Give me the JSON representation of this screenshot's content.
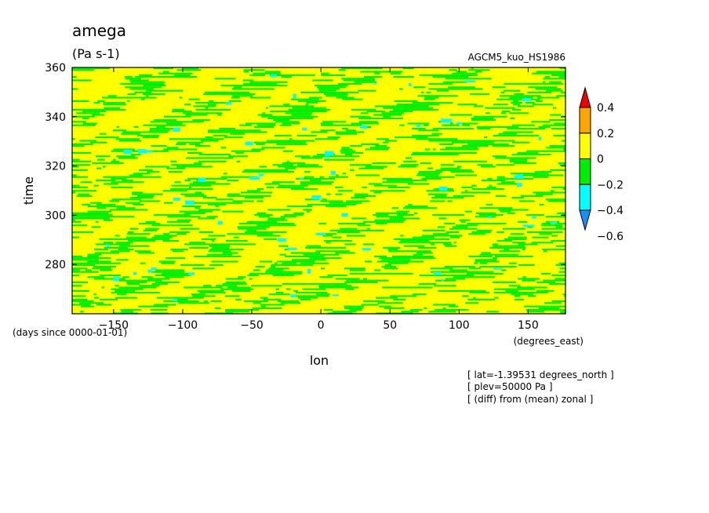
{
  "title": "amega",
  "units": "(Pa s-1)",
  "model_label": "AGCM5_kuo_HS1986",
  "xlabel": "lon",
  "ylabel": "time",
  "x_units": "(degrees_east)",
  "y_units": "(days since 0000-01-01)",
  "annotations": [
    "[ lat=-1.39531 degrees_north ]",
    "[ plev=50000 Pa ]",
    "[ (diff) from (mean) zonal ]"
  ],
  "colors": {
    "red": "#ee0000",
    "orange": "#ffa500",
    "yellow": "#ffff00",
    "green": "#00ee00",
    "cyan": "#00ffff",
    "blue": "#1c8cff"
  },
  "chart_data": {
    "type": "heatmap",
    "title": "amega",
    "xlabel": "lon",
    "ylabel": "time",
    "xlim": [
      -180,
      177
    ],
    "ylim": [
      260,
      360
    ],
    "x_ticks": [
      -150,
      -100,
      -50,
      0,
      50,
      100,
      150
    ],
    "x_tick_labels": [
      "−150",
      "−100",
      "−50",
      "0",
      "50",
      "100",
      "150"
    ],
    "y_ticks": [
      280,
      300,
      320,
      340,
      360
    ],
    "y_tick_labels": [
      "280",
      "300",
      "320",
      "340",
      "360"
    ],
    "colorbar": {
      "levels": [
        -0.6,
        -0.4,
        -0.2,
        0,
        0.2,
        0.4
      ],
      "labels": [
        "−0.6",
        "−0.4",
        "−0.2",
        "0",
        "0.2",
        "0.4"
      ],
      "colors": [
        "#1c8cff",
        "#00ffff",
        "#00ee00",
        "#ffff00",
        "#ffa500",
        "#ee0000"
      ]
    },
    "dominant_range": [
      -0.4,
      0.2
    ],
    "pattern": "westward-propagating diagonal bands of negative (green) values over near-zero (yellow) background, scattered cyan patches"
  }
}
